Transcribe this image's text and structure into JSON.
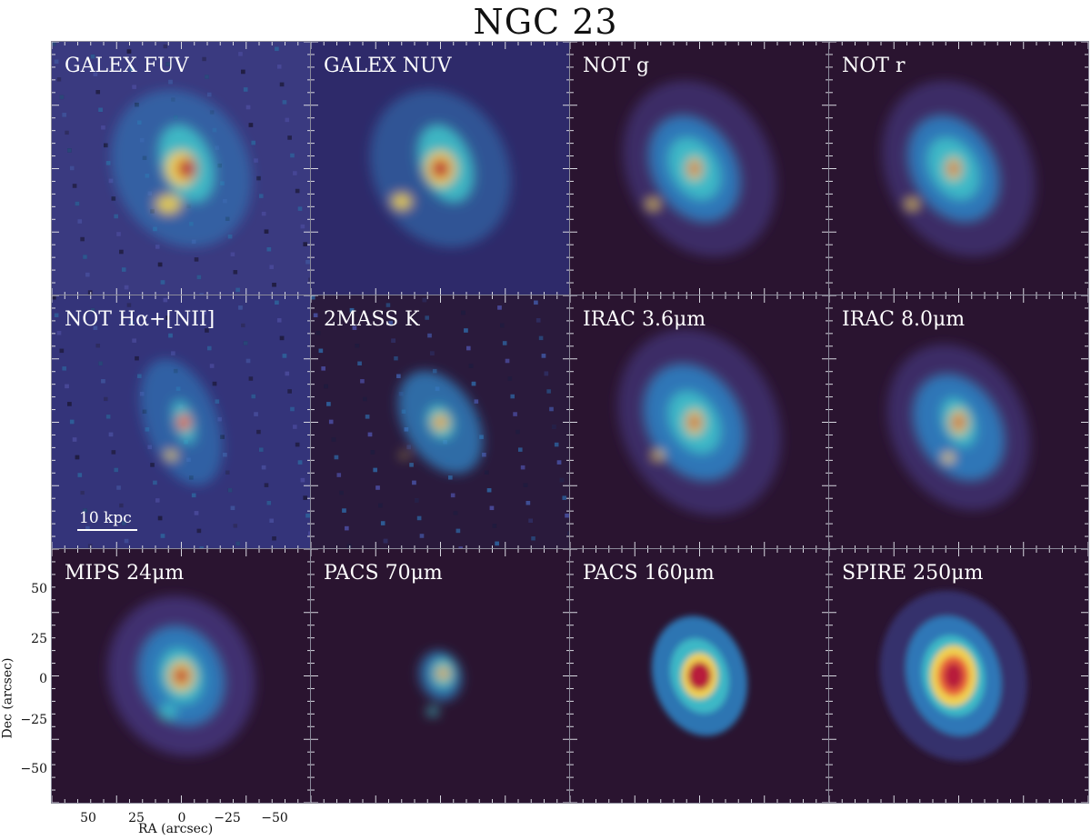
{
  "figure": {
    "title": "NGC 23",
    "panels": [
      {
        "label": "GALEX FUV",
        "style": "fuv"
      },
      {
        "label": "GALEX NUV",
        "style": "nuv"
      },
      {
        "label": "NOT g",
        "style": "opt"
      },
      {
        "label": "NOT r",
        "style": "opt"
      },
      {
        "label": "NOT Hα+[NII]",
        "style": "ha"
      },
      {
        "label": "2MASS K",
        "style": "k"
      },
      {
        "label": "IRAC 3.6μm",
        "style": "irac1"
      },
      {
        "label": "IRAC 8.0μm",
        "style": "irac4"
      },
      {
        "label": "MIPS 24μm",
        "style": "mips"
      },
      {
        "label": "PACS 70μm",
        "style": "pacs70"
      },
      {
        "label": "PACS 160μm",
        "style": "pacs160"
      },
      {
        "label": "SPIRE 250μm",
        "style": "spire"
      }
    ],
    "scalebar": {
      "label": "10 kpc"
    },
    "axes": {
      "xlabel": "RA (arcsec)",
      "ylabel": "Dec (arcsec)",
      "xticks": [
        "50",
        "25",
        "0",
        "−25",
        "−50"
      ],
      "yticks": [
        "50",
        "25",
        "0",
        "−25",
        "−50"
      ]
    },
    "colormap": [
      "#2a1430",
      "#3a3a7a",
      "#2f7fc0",
      "#3fc0c8",
      "#b8e07a",
      "#f0d050",
      "#e8603a",
      "#b81e3a"
    ]
  }
}
